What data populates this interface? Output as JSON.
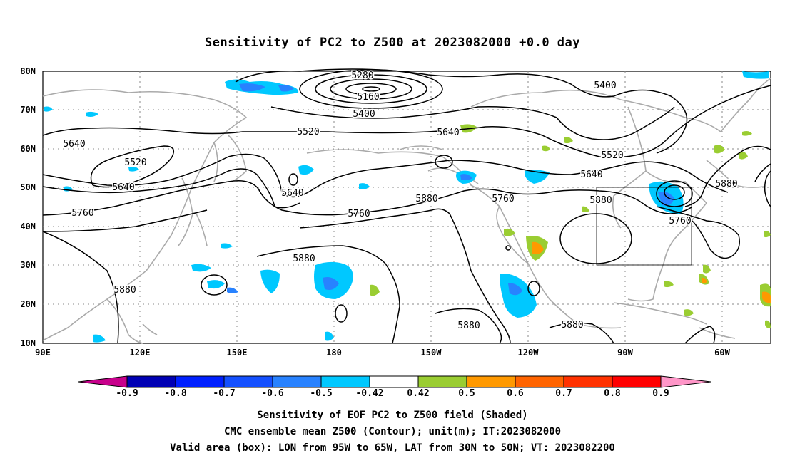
{
  "title": "Sensitivity of PC2 to Z500 at 2023082000 +0.0 day",
  "lat_labels": [
    "80N",
    "70N",
    "60N",
    "50N",
    "40N",
    "30N",
    "20N",
    "10N"
  ],
  "lon_labels": [
    "90E",
    "120E",
    "150E",
    "180",
    "150W",
    "120W",
    "90W",
    "60W"
  ],
  "contour_labels": [
    "5280",
    "5160",
    "5400",
    "5520",
    "5640",
    "5400",
    "5640",
    "5520",
    "5640",
    "5520",
    "5640",
    "5760",
    "5880",
    "5760",
    "5880",
    "5760",
    "5640",
    "5880",
    "5760",
    "5880",
    "5880",
    "5880",
    "5880"
  ],
  "colorbar": {
    "labels": [
      "-0.9",
      "-0.8",
      "-0.7",
      "-0.6",
      "-0.5",
      "-0.42",
      "0.42",
      "0.5",
      "0.6",
      "0.7",
      "0.8",
      "0.9"
    ],
    "colors": [
      "#c8008c",
      "#0000b4",
      "#0020ff",
      "#1450ff",
      "#2882ff",
      "#00c8ff",
      "#ffffff",
      "#9acd32",
      "#ff9900",
      "#ff6400",
      "#ff3200",
      "#ff0000",
      "#ff96c8"
    ]
  },
  "captions": [
    "Sensitivity of EOF PC2 to Z500 field (Shaded)",
    "CMC ensemble mean Z500 (Contour); unit(m); IT:2023082000",
    "Valid area (box): LON from 95W to 65W, LAT from 30N to 50N; VT: 2023082200"
  ]
}
